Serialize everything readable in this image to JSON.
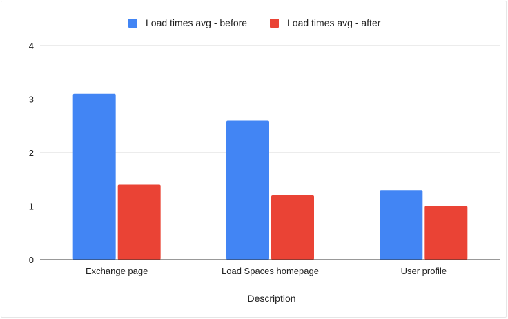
{
  "chart_data": {
    "type": "bar",
    "title": "",
    "xlabel": "Description",
    "ylabel": "",
    "categories": [
      "Exchange page",
      "Load Spaces homepage",
      "User profile"
    ],
    "series": [
      {
        "name": "Load times avg - before",
        "color": "#4285f4",
        "values": [
          3.1,
          2.6,
          1.3
        ]
      },
      {
        "name": "Load times avg - after",
        "color": "#ea4335",
        "values": [
          1.4,
          1.2,
          1.0
        ]
      }
    ],
    "ylim": [
      0,
      4
    ],
    "yticks": [
      "0",
      "1",
      "2",
      "3",
      "4"
    ],
    "grid": true,
    "legend_position": "top"
  }
}
